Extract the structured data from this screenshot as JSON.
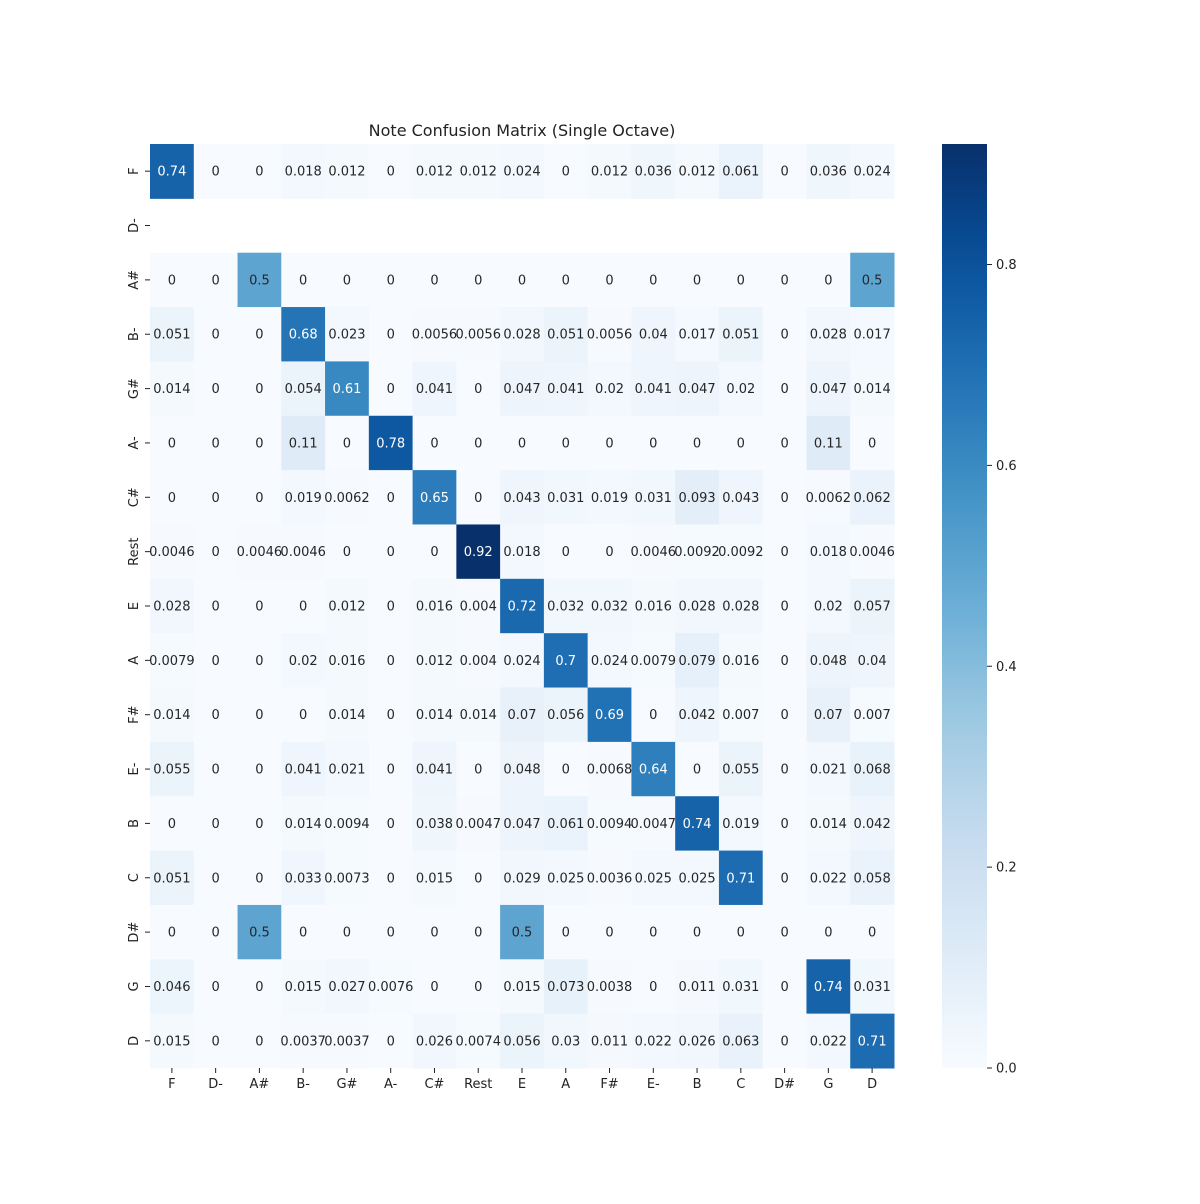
{
  "chart_data": {
    "type": "heatmap",
    "title": "Note Confusion Matrix (Single Octave)",
    "xlabel": "",
    "ylabel": "",
    "x_categories": [
      "F",
      "D-",
      "A#",
      "B-",
      "G#",
      "A-",
      "C#",
      "Rest",
      "E",
      "A",
      "F#",
      "E-",
      "B",
      "C",
      "D#",
      "G",
      "D"
    ],
    "y_categories": [
      "F",
      "D-",
      "A#",
      "B-",
      "G#",
      "A-",
      "C#",
      "Rest",
      "E",
      "A",
      "F#",
      "E-",
      "B",
      "C",
      "D#",
      "G",
      "D"
    ],
    "values": [
      [
        0.74,
        0,
        0,
        0.018,
        0.012,
        0,
        0.012,
        0.012,
        0.024,
        0,
        0.012,
        0.036,
        0.012,
        0.061,
        0,
        0.036,
        0.024
      ],
      [
        null,
        null,
        null,
        null,
        null,
        null,
        null,
        null,
        null,
        null,
        null,
        null,
        null,
        null,
        null,
        null,
        null
      ],
      [
        0,
        0,
        0.5,
        0,
        0,
        0,
        0,
        0,
        0,
        0,
        0,
        0,
        0,
        0,
        0,
        0,
        0.5
      ],
      [
        0.051,
        0,
        0,
        0.68,
        0.023,
        0,
        0.0056,
        0.0056,
        0.028,
        0.051,
        0.0056,
        0.04,
        0.017,
        0.051,
        0,
        0.028,
        0.017
      ],
      [
        0.014,
        0,
        0,
        0.054,
        0.61,
        0,
        0.041,
        0,
        0.047,
        0.041,
        0.02,
        0.041,
        0.047,
        0.02,
        0,
        0.047,
        0.014
      ],
      [
        0,
        0,
        0,
        0.11,
        0,
        0.78,
        0,
        0,
        0,
        0,
        0,
        0,
        0,
        0,
        0,
        0.11,
        0
      ],
      [
        0,
        0,
        0,
        0.019,
        0.0062,
        0,
        0.65,
        0,
        0.043,
        0.031,
        0.019,
        0.031,
        0.093,
        0.043,
        0,
        0.0062,
        0.062
      ],
      [
        0.0046,
        0,
        0.0046,
        0.0046,
        0,
        0,
        0,
        0.92,
        0.018,
        0,
        0,
        0.0046,
        0.0092,
        0.0092,
        0,
        0.018,
        0.0046
      ],
      [
        0.028,
        0,
        0,
        0,
        0.012,
        0,
        0.016,
        0.004,
        0.72,
        0.032,
        0.032,
        0.016,
        0.028,
        0.028,
        0,
        0.02,
        0.057
      ],
      [
        0.0079,
        0,
        0,
        0.02,
        0.016,
        0,
        0.012,
        0.004,
        0.024,
        0.7,
        0.024,
        0.0079,
        0.079,
        0.016,
        0,
        0.048,
        0.04
      ],
      [
        0.014,
        0,
        0,
        0,
        0.014,
        0,
        0.014,
        0.014,
        0.07,
        0.056,
        0.69,
        0,
        0.042,
        0.007,
        0,
        0.07,
        0.007
      ],
      [
        0.055,
        0,
        0,
        0.041,
        0.021,
        0,
        0.041,
        0,
        0.048,
        0,
        0.0068,
        0.64,
        0,
        0.055,
        0,
        0.021,
        0.068
      ],
      [
        0,
        0,
        0,
        0.014,
        0.0094,
        0,
        0.038,
        0.0047,
        0.047,
        0.061,
        0.0094,
        0.0047,
        0.74,
        0.019,
        0,
        0.014,
        0.042
      ],
      [
        0.051,
        0,
        0,
        0.033,
        0.0073,
        0,
        0.015,
        0,
        0.029,
        0.025,
        0.0036,
        0.025,
        0.025,
        0.71,
        0,
        0.022,
        0.058
      ],
      [
        0,
        0,
        0.5,
        0,
        0,
        0,
        0,
        0,
        0.5,
        0,
        0,
        0,
        0,
        0,
        0,
        0,
        0
      ],
      [
        0.046,
        0,
        0,
        0.015,
        0.027,
        0.0076,
        0,
        0,
        0.015,
        0.073,
        0.0038,
        0,
        0.011,
        0.031,
        0,
        0.74,
        0.031
      ],
      [
        0.015,
        0,
        0,
        0.0037,
        0.0037,
        0,
        0.026,
        0.0074,
        0.056,
        0.03,
        0.011,
        0.022,
        0.026,
        0.063,
        0,
        0.022,
        0.71
      ]
    ],
    "colormap": "Blues",
    "color_range": [
      0,
      0.92
    ],
    "colorbar_ticks": [
      0.0,
      0.2,
      0.4,
      0.6,
      0.8
    ],
    "colorbar_tick_labels": [
      "0.0",
      "0.2",
      "0.4",
      "0.6",
      "0.8"
    ],
    "grid": false,
    "colorbar": "right"
  }
}
